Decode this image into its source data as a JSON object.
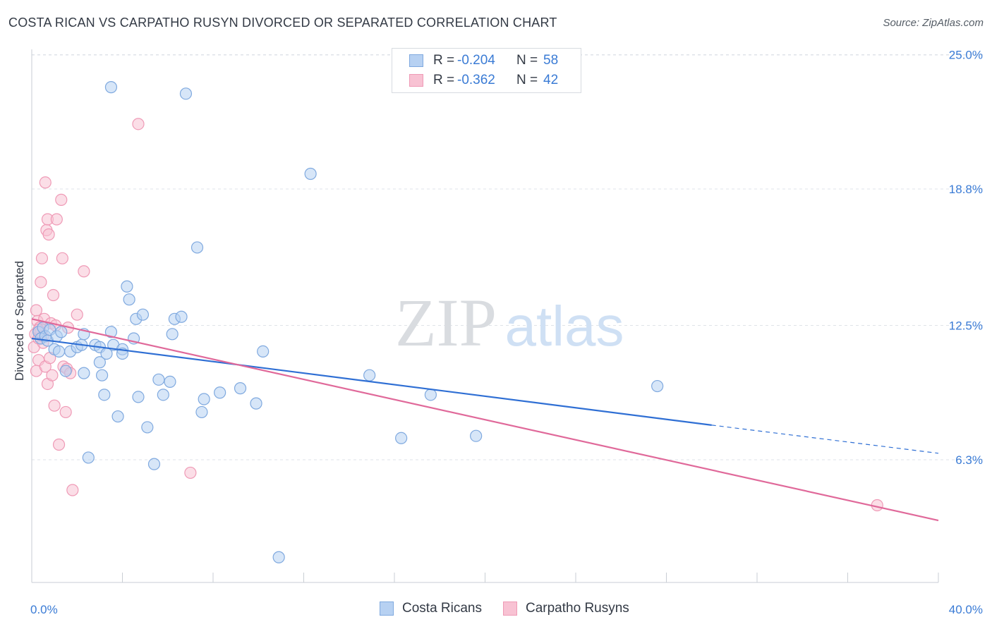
{
  "header": {
    "title": "COSTA RICAN VS CARPATHO RUSYN DIVORCED OR SEPARATED CORRELATION CHART",
    "source": "Source: ZipAtlas.com"
  },
  "watermark": {
    "part1": "ZIP",
    "part2": "atlas"
  },
  "legend": {
    "rows": [
      {
        "r_label": "R =",
        "r_value": "-0.204",
        "n_label": "N =",
        "n_value": "58"
      },
      {
        "r_label": "R =",
        "r_value": "-0.362",
        "n_label": "N =",
        "n_value": "42"
      }
    ],
    "bottom": [
      "Costa Ricans",
      "Carpatho Rusyns"
    ]
  },
  "colors": {
    "blue_fill": "#b7d1f2",
    "blue_stroke": "#7fa9df",
    "blue_line": "#2f6fd4",
    "pink_fill": "#f8c2d3",
    "pink_stroke": "#ef9ab6",
    "pink_line": "#e0699a",
    "tick_text": "#3a7bd5",
    "grid": "#dfe3e8"
  },
  "chart_data": {
    "type": "scatter",
    "title": "COSTA RICAN VS CARPATHO RUSYN DIVORCED OR SEPARATED CORRELATION CHART",
    "xlabel": "",
    "ylabel": "Divorced or Separated",
    "xlim": [
      0,
      40
    ],
    "ylim": [
      0,
      25.5
    ],
    "x_tick_labels": [
      "0.0%",
      "40.0%"
    ],
    "y_ticks": [
      6.3,
      12.5,
      18.8,
      25.0
    ],
    "y_tick_labels": [
      "6.3%",
      "12.5%",
      "18.8%",
      "25.0%"
    ],
    "series": [
      {
        "name": "Costa Ricans",
        "r": -0.204,
        "n": 58,
        "trend": {
          "x0": 0,
          "y0": 11.9,
          "x1": 30,
          "y1": 7.9,
          "dash_to_x": 40,
          "dash_to_y": 6.6
        },
        "points": [
          [
            0.3,
            12.2
          ],
          [
            0.4,
            11.9
          ],
          [
            0.5,
            12.4
          ],
          [
            0.6,
            12.0
          ],
          [
            0.7,
            11.8
          ],
          [
            0.8,
            12.3
          ],
          [
            1.0,
            11.4
          ],
          [
            1.1,
            12.0
          ],
          [
            1.2,
            11.3
          ],
          [
            1.3,
            12.2
          ],
          [
            1.5,
            10.4
          ],
          [
            1.7,
            11.3
          ],
          [
            2.0,
            11.5
          ],
          [
            2.2,
            11.6
          ],
          [
            2.3,
            12.1
          ],
          [
            2.3,
            10.3
          ],
          [
            2.5,
            6.4
          ],
          [
            2.8,
            11.6
          ],
          [
            3.0,
            11.5
          ],
          [
            3.0,
            10.8
          ],
          [
            3.1,
            10.2
          ],
          [
            3.2,
            9.3
          ],
          [
            3.3,
            11.2
          ],
          [
            3.5,
            12.2
          ],
          [
            3.6,
            11.6
          ],
          [
            3.5,
            23.5
          ],
          [
            3.8,
            8.3
          ],
          [
            4.0,
            11.4
          ],
          [
            4.0,
            11.2
          ],
          [
            4.2,
            14.3
          ],
          [
            4.3,
            13.7
          ],
          [
            4.5,
            11.9
          ],
          [
            4.6,
            12.8
          ],
          [
            4.7,
            9.2
          ],
          [
            4.9,
            13.0
          ],
          [
            5.1,
            7.8
          ],
          [
            5.4,
            6.1
          ],
          [
            5.6,
            10.0
          ],
          [
            5.8,
            9.3
          ],
          [
            6.1,
            9.9
          ],
          [
            6.2,
            12.1
          ],
          [
            6.3,
            12.8
          ],
          [
            6.6,
            12.9
          ],
          [
            6.8,
            23.2
          ],
          [
            7.3,
            16.1
          ],
          [
            7.5,
            8.5
          ],
          [
            7.6,
            9.1
          ],
          [
            8.3,
            9.4
          ],
          [
            9.2,
            9.6
          ],
          [
            9.9,
            8.9
          ],
          [
            10.2,
            11.3
          ],
          [
            10.9,
            1.8
          ],
          [
            12.3,
            19.5
          ],
          [
            14.9,
            10.2
          ],
          [
            16.3,
            7.3
          ],
          [
            17.6,
            9.3
          ],
          [
            19.6,
            7.4
          ],
          [
            27.6,
            9.7
          ]
        ]
      },
      {
        "name": "Carpatho Rusyns",
        "r": -0.362,
        "n": 42,
        "trend": {
          "x0": 0,
          "y0": 12.8,
          "x1": 40,
          "y1": 3.5
        },
        "points": [
          [
            0.1,
            11.5
          ],
          [
            0.15,
            12.1
          ],
          [
            0.2,
            13.2
          ],
          [
            0.2,
            10.4
          ],
          [
            0.25,
            12.7
          ],
          [
            0.3,
            11.9
          ],
          [
            0.3,
            10.9
          ],
          [
            0.35,
            12.4
          ],
          [
            0.4,
            14.5
          ],
          [
            0.4,
            12.2
          ],
          [
            0.45,
            15.6
          ],
          [
            0.5,
            11.7
          ],
          [
            0.55,
            12.8
          ],
          [
            0.6,
            19.1
          ],
          [
            0.6,
            10.6
          ],
          [
            0.65,
            16.9
          ],
          [
            0.7,
            17.4
          ],
          [
            0.7,
            9.8
          ],
          [
            0.75,
            16.7
          ],
          [
            0.8,
            11.0
          ],
          [
            0.85,
            12.6
          ],
          [
            0.9,
            10.2
          ],
          [
            0.95,
            13.9
          ],
          [
            1.0,
            8.8
          ],
          [
            1.05,
            12.5
          ],
          [
            1.1,
            17.4
          ],
          [
            1.2,
            7.0
          ],
          [
            1.3,
            18.3
          ],
          [
            1.35,
            15.6
          ],
          [
            1.4,
            10.6
          ],
          [
            1.5,
            8.5
          ],
          [
            1.55,
            10.5
          ],
          [
            1.6,
            12.4
          ],
          [
            1.7,
            10.3
          ],
          [
            1.8,
            4.9
          ],
          [
            2.0,
            13.0
          ],
          [
            2.3,
            15.0
          ],
          [
            4.7,
            21.8
          ],
          [
            7.0,
            5.7
          ],
          [
            37.3,
            4.2
          ],
          [
            0.3,
            12.3
          ],
          [
            0.5,
            12.0
          ]
        ]
      }
    ]
  }
}
